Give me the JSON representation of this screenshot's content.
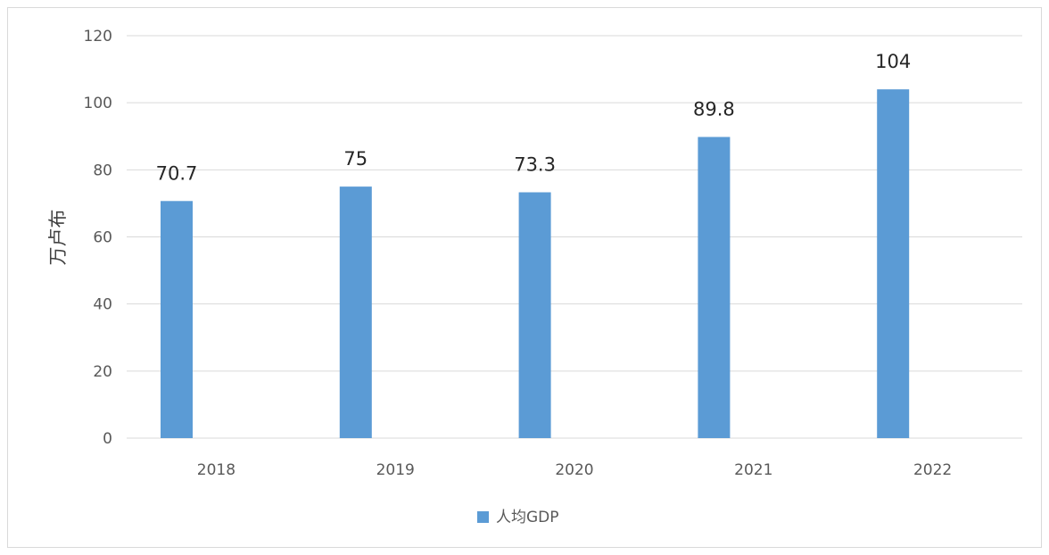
{
  "chart_data": {
    "type": "bar",
    "categories": [
      "2018",
      "2019",
      "2020",
      "2021",
      "2022"
    ],
    "series": [
      {
        "name": "人均GDP",
        "values": [
          70.7,
          75,
          73.3,
          89.8,
          104
        ],
        "color": "#5b9bd5"
      }
    ],
    "data_labels": [
      "70.7",
      "75",
      "73.3",
      "89.8",
      "104"
    ],
    "title": "",
    "xlabel": "",
    "ylabel": "万卢布",
    "ylim": [
      0,
      120
    ],
    "yticks": [
      0,
      20,
      40,
      60,
      80,
      100,
      120
    ],
    "grid": true,
    "gridline_color": "#d9d9d9",
    "legend_position": "bottom"
  }
}
